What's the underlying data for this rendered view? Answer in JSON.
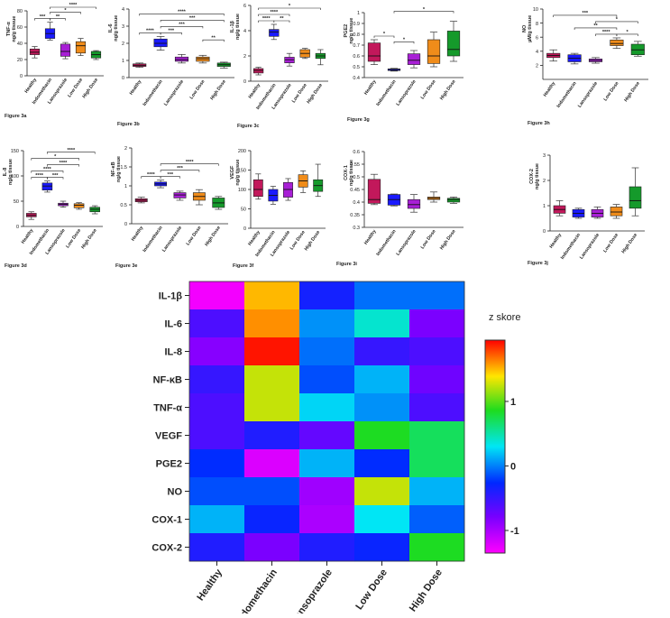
{
  "groups": [
    "Healthy",
    "Indomethacin",
    "Lansoprazole",
    "Low Dose",
    "High Dose"
  ],
  "colors": {
    "Healthy": "#c2185b",
    "Indomethacin": "#1a1aff",
    "Lansoprazole": "#a81fd6",
    "Low Dose": "#f08c1a",
    "High Dose": "#159a2b"
  },
  "chart_data": [
    {
      "type": "box",
      "figure_label": "Figure 3a",
      "ylabel": "TNF-α\nng/g tissue",
      "ylim": [
        0,
        80
      ],
      "yticks": [
        0,
        20,
        40,
        60,
        80
      ],
      "boxes": [
        {
          "group": "Healthy",
          "min": 22,
          "q1": 26,
          "median": 29,
          "q3": 33,
          "max": 36
        },
        {
          "group": "Indomethacin",
          "min": 44,
          "q1": 46,
          "median": 52,
          "q3": 58,
          "max": 66
        },
        {
          "group": "Lansoprazole",
          "min": 21,
          "q1": 24,
          "median": 30,
          "q3": 39,
          "max": 41
        },
        {
          "group": "Low Dose",
          "min": 25,
          "q1": 28,
          "median": 37,
          "q3": 42,
          "max": 46
        },
        {
          "group": "High Dose",
          "min": 20,
          "q1": 22,
          "median": 26,
          "q3": 30,
          "max": 31
        }
      ],
      "significance": [
        {
          "from": 0,
          "to": 1,
          "label": "***"
        },
        {
          "from": 1,
          "to": 2,
          "label": "**"
        },
        {
          "from": 1,
          "to": 3,
          "label": "*"
        },
        {
          "from": 1,
          "to": 4,
          "label": "****"
        }
      ]
    },
    {
      "type": "box",
      "figure_label": "Figure 3b",
      "ylabel": "IL-6\nng/g tissue",
      "ylim": [
        0,
        4
      ],
      "yticks": [
        0,
        1,
        2,
        3,
        4
      ],
      "boxes": [
        {
          "group": "Healthy",
          "min": 0.6,
          "q1": 0.65,
          "median": 0.72,
          "q3": 0.8,
          "max": 0.85
        },
        {
          "group": "Indomethacin",
          "min": 1.6,
          "q1": 1.8,
          "median": 2.0,
          "q3": 2.25,
          "max": 2.4
        },
        {
          "group": "Lansoprazole",
          "min": 0.85,
          "q1": 0.95,
          "median": 1.05,
          "q3": 1.2,
          "max": 1.35
        },
        {
          "group": "Low Dose",
          "min": 0.85,
          "q1": 0.95,
          "median": 1.1,
          "q3": 1.2,
          "max": 1.3
        },
        {
          "group": "High Dose",
          "min": 0.55,
          "q1": 0.65,
          "median": 0.75,
          "q3": 0.85,
          "max": 0.9
        }
      ],
      "significance": [
        {
          "from": 0,
          "to": 1,
          "label": "****"
        },
        {
          "from": 1,
          "to": 2,
          "label": "***"
        },
        {
          "from": 1,
          "to": 3,
          "label": "***"
        },
        {
          "from": 3,
          "to": 4,
          "label": "**"
        },
        {
          "from": 1,
          "to": 4,
          "label": "***"
        },
        {
          "from": 0,
          "to": 4,
          "label": "****"
        }
      ]
    },
    {
      "type": "box",
      "figure_label": "Figure 3c",
      "ylabel": "IL-1β\nng/g tissue",
      "ylim": [
        0,
        6
      ],
      "yticks": [
        0,
        2,
        4,
        6
      ],
      "boxes": [
        {
          "group": "Healthy",
          "min": 0.5,
          "q1": 0.65,
          "median": 0.85,
          "q3": 1.0,
          "max": 1.1
        },
        {
          "group": "Indomethacin",
          "min": 3.3,
          "q1": 3.55,
          "median": 3.9,
          "q3": 4.1,
          "max": 4.5
        },
        {
          "group": "Lansoprazole",
          "min": 1.2,
          "q1": 1.45,
          "median": 1.7,
          "q3": 1.9,
          "max": 2.2
        },
        {
          "group": "Low Dose",
          "min": 1.8,
          "q1": 1.9,
          "median": 2.2,
          "q3": 2.5,
          "max": 2.6
        },
        {
          "group": "High Dose",
          "min": 1.3,
          "q1": 1.8,
          "median": 2.0,
          "q3": 2.2,
          "max": 2.5
        }
      ],
      "significance": [
        {
          "from": 0,
          "to": 1,
          "label": "****"
        },
        {
          "from": 1,
          "to": 2,
          "label": "**"
        },
        {
          "from": 0,
          "to": 2,
          "label": "****"
        },
        {
          "from": 0,
          "to": 4,
          "label": "*"
        }
      ]
    },
    {
      "type": "box",
      "figure_label": "Figure 3g",
      "ylabel": "PGE2\nng/g tissue",
      "ylim": [
        0.4,
        1.0
      ],
      "yticks": [
        0.4,
        0.5,
        0.6,
        0.7,
        0.8,
        0.9,
        1.0
      ],
      "boxes": [
        {
          "group": "Healthy",
          "min": 0.52,
          "q1": 0.55,
          "median": 0.6,
          "q3": 0.72,
          "max": 0.75
        },
        {
          "group": "Indomethacin",
          "min": 0.46,
          "q1": 0.465,
          "median": 0.475,
          "q3": 0.48,
          "max": 0.485
        },
        {
          "group": "Lansoprazole",
          "min": 0.49,
          "q1": 0.52,
          "median": 0.56,
          "q3": 0.62,
          "max": 0.65
        },
        {
          "group": "Low Dose",
          "min": 0.5,
          "q1": 0.53,
          "median": 0.6,
          "q3": 0.75,
          "max": 0.82
        },
        {
          "group": "High Dose",
          "min": 0.55,
          "q1": 0.6,
          "median": 0.66,
          "q3": 0.83,
          "max": 0.92
        }
      ],
      "significance": [
        {
          "from": 0,
          "to": 1,
          "label": "*"
        },
        {
          "from": 1,
          "to": 2,
          "label": "*"
        },
        {
          "from": 1,
          "to": 4,
          "label": "*"
        }
      ]
    },
    {
      "type": "box",
      "figure_label": "Figure 3h",
      "ylabel": "NO\nµM/g tissue",
      "ylim": [
        0,
        10
      ],
      "yticks": [
        2,
        4,
        6,
        8,
        10
      ],
      "boxes": [
        {
          "group": "Healthy",
          "min": 2.6,
          "q1": 3.1,
          "median": 3.4,
          "q3": 3.7,
          "max": 4.2
        },
        {
          "group": "Indomethacin",
          "min": 2.2,
          "q1": 2.5,
          "median": 3.0,
          "q3": 3.5,
          "max": 3.7
        },
        {
          "group": "Lansoprazole",
          "min": 2.3,
          "q1": 2.5,
          "median": 2.7,
          "q3": 2.9,
          "max": 3.1
        },
        {
          "group": "Low Dose",
          "min": 4.4,
          "q1": 4.8,
          "median": 5.1,
          "q3": 5.6,
          "max": 5.9
        },
        {
          "group": "High Dose",
          "min": 3.3,
          "q1": 3.5,
          "median": 4.2,
          "q3": 5.0,
          "max": 5.4
        }
      ],
      "significance": [
        {
          "from": 2,
          "to": 3,
          "label": "****"
        },
        {
          "from": 3,
          "to": 4,
          "label": "*"
        },
        {
          "from": 1,
          "to": 3,
          "label": "**"
        },
        {
          "from": 2,
          "to": 4,
          "label": "*"
        },
        {
          "from": 0,
          "to": 3,
          "label": "***"
        }
      ]
    },
    {
      "type": "box",
      "figure_label": "Figure 3d",
      "ylabel": "IL-8\nng/g tissue",
      "ylim": [
        0,
        150
      ],
      "yticks": [
        0,
        50,
        100,
        150
      ],
      "boxes": [
        {
          "group": "Healthy",
          "min": 14,
          "q1": 19,
          "median": 22,
          "q3": 26,
          "max": 29
        },
        {
          "group": "Indomethacin",
          "min": 68,
          "q1": 72,
          "median": 80,
          "q3": 86,
          "max": 90
        },
        {
          "group": "Lansoprazole",
          "min": 38,
          "q1": 41,
          "median": 44,
          "q3": 46,
          "max": 50
        },
        {
          "group": "Low Dose",
          "min": 34,
          "q1": 37,
          "median": 42,
          "q3": 45,
          "max": 47
        },
        {
          "group": "High Dose",
          "min": 25,
          "q1": 29,
          "median": 34,
          "q3": 38,
          "max": 41
        }
      ],
      "significance": [
        {
          "from": 0,
          "to": 1,
          "label": "****"
        },
        {
          "from": 1,
          "to": 2,
          "label": "***"
        },
        {
          "from": 0,
          "to": 2,
          "label": "****"
        },
        {
          "from": 1,
          "to": 3,
          "label": "****"
        },
        {
          "from": 0,
          "to": 3,
          "label": "*"
        },
        {
          "from": 1,
          "to": 4,
          "label": "****"
        }
      ]
    },
    {
      "type": "box",
      "figure_label": "Figure 3e",
      "ylabel": "NF-κB\nng/g tissue",
      "ylim": [
        0,
        2.0
      ],
      "yticks": [
        0,
        0.5,
        1.0,
        1.5,
        2.0
      ],
      "boxes": [
        {
          "group": "Healthy",
          "min": 0.55,
          "q1": 0.58,
          "median": 0.62,
          "q3": 0.66,
          "max": 0.7
        },
        {
          "group": "Indomethacin",
          "min": 0.95,
          "q1": 1.0,
          "median": 1.05,
          "q3": 1.1,
          "max": 1.15
        },
        {
          "group": "Lansoprazole",
          "min": 0.62,
          "q1": 0.68,
          "median": 0.76,
          "q3": 0.82,
          "max": 0.86
        },
        {
          "group": "Low Dose",
          "min": 0.5,
          "q1": 0.62,
          "median": 0.72,
          "q3": 0.82,
          "max": 0.9
        },
        {
          "group": "High Dose",
          "min": 0.38,
          "q1": 0.43,
          "median": 0.55,
          "q3": 0.68,
          "max": 0.72
        }
      ],
      "significance": [
        {
          "from": 0,
          "to": 1,
          "label": "****"
        },
        {
          "from": 1,
          "to": 2,
          "label": "***"
        },
        {
          "from": 1,
          "to": 3,
          "label": "***"
        },
        {
          "from": 1,
          "to": 4,
          "label": "****"
        }
      ]
    },
    {
      "type": "box",
      "figure_label": "Figure 3f",
      "ylabel": "VEGF\nng/g tissue",
      "ylim": [
        0,
        200
      ],
      "yticks": [
        0,
        50,
        100,
        150,
        200
      ],
      "boxes": [
        {
          "group": "Healthy",
          "min": 75,
          "q1": 82,
          "median": 100,
          "q3": 125,
          "max": 140
        },
        {
          "group": "Indomethacin",
          "min": 62,
          "q1": 70,
          "median": 85,
          "q3": 100,
          "max": 108
        },
        {
          "group": "Lansoprazole",
          "min": 72,
          "q1": 80,
          "median": 100,
          "q3": 118,
          "max": 128
        },
        {
          "group": "Low Dose",
          "min": 92,
          "q1": 106,
          "median": 122,
          "q3": 138,
          "max": 148
        },
        {
          "group": "High Dose",
          "min": 82,
          "q1": 95,
          "median": 110,
          "q3": 125,
          "max": 165
        }
      ],
      "significance": []
    },
    {
      "type": "box",
      "figure_label": "Figure 3i",
      "ylabel": "COX-1\nng/g tissue",
      "ylim": [
        0.3,
        0.6
      ],
      "yticks": [
        0.3,
        0.35,
        0.4,
        0.45,
        0.5,
        0.55,
        0.6
      ],
      "boxes": [
        {
          "group": "Healthy",
          "min": 0.39,
          "q1": 0.395,
          "median": 0.41,
          "q3": 0.49,
          "max": 0.51
        },
        {
          "group": "Indomethacin",
          "min": 0.385,
          "q1": 0.388,
          "median": 0.41,
          "q3": 0.43,
          "max": 0.432
        },
        {
          "group": "Lansoprazole",
          "min": 0.36,
          "q1": 0.375,
          "median": 0.39,
          "q3": 0.41,
          "max": 0.43
        },
        {
          "group": "Low Dose",
          "min": 0.4,
          "q1": 0.41,
          "median": 0.415,
          "q3": 0.42,
          "max": 0.44
        },
        {
          "group": "High Dose",
          "min": 0.395,
          "q1": 0.4,
          "median": 0.41,
          "q3": 0.415,
          "max": 0.42
        }
      ],
      "significance": []
    },
    {
      "type": "box",
      "figure_label": "Figure 3j",
      "ylabel": "COX-2\nng/g tissue",
      "ylim": [
        0,
        3
      ],
      "yticks": [
        0,
        1,
        2,
        3
      ],
      "boxes": [
        {
          "group": "Healthy",
          "min": 0.6,
          "q1": 0.7,
          "median": 0.85,
          "q3": 1.0,
          "max": 1.2
        },
        {
          "group": "Indomethacin",
          "min": 0.5,
          "q1": 0.55,
          "median": 0.7,
          "q3": 0.85,
          "max": 0.9
        },
        {
          "group": "Lansoprazole",
          "min": 0.5,
          "q1": 0.55,
          "median": 0.7,
          "q3": 0.85,
          "max": 0.95
        },
        {
          "group": "Low Dose",
          "min": 0.5,
          "q1": 0.6,
          "median": 0.75,
          "q3": 0.95,
          "max": 1.05
        },
        {
          "group": "High Dose",
          "min": 0.6,
          "q1": 0.9,
          "median": 1.2,
          "q3": 1.75,
          "max": 2.5
        }
      ],
      "significance": []
    },
    {
      "type": "heatmap",
      "rows": [
        "IL-1β",
        "IL-6",
        "IL-8",
        "NF-κB",
        "TNF-α",
        "VEGF",
        "PGE2",
        "NO",
        "COX-1",
        "COX-2"
      ],
      "columns": [
        "Healthy",
        "Indomethacin",
        "Lansoprazole",
        "Low Dose",
        "High Dose"
      ],
      "values": [
        [
          -1.3,
          1.5,
          -0.35,
          -0.05,
          -0.05
        ],
        [
          -0.6,
          1.6,
          0.05,
          0.4,
          -0.8
        ],
        [
          -0.85,
          1.9,
          -0.05,
          -0.5,
          -0.6
        ],
        [
          -0.5,
          1.25,
          -0.15,
          0.15,
          -0.75
        ],
        [
          -0.6,
          1.25,
          0.25,
          0.05,
          -0.6
        ],
        [
          -0.6,
          -0.4,
          -0.7,
          0.85,
          0.7
        ],
        [
          -0.25,
          -1.2,
          0.15,
          -0.25,
          0.7
        ],
        [
          -0.15,
          -0.15,
          -0.95,
          1.25,
          0.15
        ],
        [
          0.15,
          -0.3,
          -1.0,
          0.3,
          -0.1
        ],
        [
          -0.4,
          -0.8,
          -0.4,
          -0.3,
          0.85
        ]
      ],
      "zlim": [
        -1.35,
        1.95
      ],
      "colorbar_label": "z skore",
      "colorbar_ticks": [
        -1,
        0,
        1
      ]
    }
  ]
}
